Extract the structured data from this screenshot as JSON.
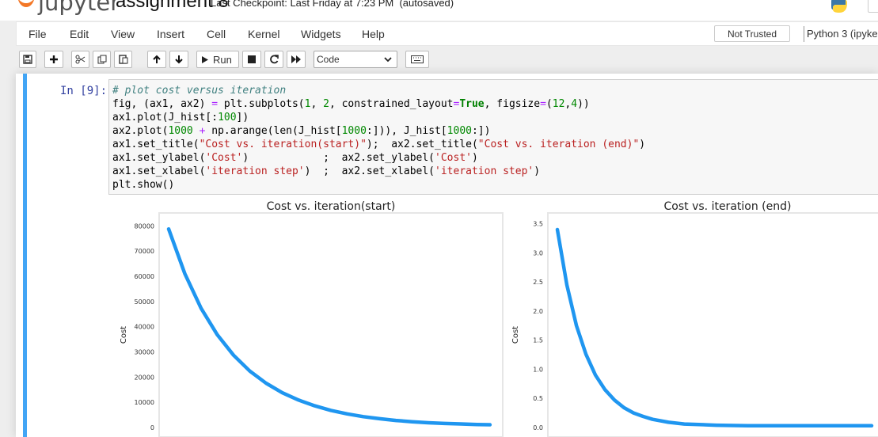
{
  "header": {
    "logo_text": "jupyter",
    "notebook_title": "assignment 8",
    "checkpoint": "Last Checkpoint: Last Friday at 7:23 PM",
    "autosave": "(autosaved)"
  },
  "menubar": {
    "items": [
      "File",
      "Edit",
      "View",
      "Insert",
      "Cell",
      "Kernel",
      "Widgets",
      "Help"
    ],
    "trust_status": "Not Trusted",
    "kernel": "Python 3 (ipyke"
  },
  "toolbar": {
    "run_label": "Run",
    "cell_type": "Code",
    "icons": [
      "save-icon",
      "plus-icon",
      "cut-icon",
      "copy-icon",
      "paste-icon",
      "arrow-up-icon",
      "arrow-down-icon",
      "play-icon",
      "stop-icon",
      "restart-icon",
      "fast-forward-icon",
      "keyboard-icon"
    ]
  },
  "cell": {
    "prompt": "In [9]:",
    "code_lines": [
      "# plot cost versus iteration",
      "fig, (ax1, ax2) = plt.subplots(1, 2, constrained_layout=True, figsize=(12,4))",
      "ax1.plot(J_hist[:100])",
      "ax2.plot(1000 + np.arange(len(J_hist[1000:])), J_hist[1000:])",
      "ax1.set_title(\"Cost vs. iteration(start)\");  ax2.set_title(\"Cost vs. iteration (end)\")",
      "ax1.set_ylabel('Cost')            ;  ax2.set_ylabel('Cost')",
      "ax1.set_xlabel('iteration step')  ;  ax2.set_xlabel('iteration step')",
      "plt.show()"
    ]
  },
  "colors": {
    "accent": "#42a5f5",
    "line": "#1f96f0",
    "prompt": "#303f9f"
  },
  "chart_data": [
    {
      "type": "line",
      "title": "Cost vs. iteration(start)",
      "ylabel": "Cost",
      "xlim": [
        0,
        100
      ],
      "ylim": [
        0,
        82000
      ],
      "yticks": [
        0,
        10000,
        20000,
        30000,
        40000,
        50000,
        60000,
        70000,
        80000
      ],
      "ytick_labels": [
        "0",
        "10000",
        "20000",
        "30000",
        "40000",
        "50000",
        "60000",
        "70000",
        "80000"
      ],
      "series": [
        {
          "x": [
            0,
            5,
            10,
            15,
            20,
            25,
            30,
            35,
            40,
            45,
            50,
            55,
            60,
            65,
            70,
            75,
            80,
            85,
            90,
            95,
            99
          ],
          "values": [
            78800,
            61000,
            47300,
            36800,
            28700,
            22400,
            17600,
            13800,
            10900,
            8600,
            6800,
            5400,
            4300,
            3500,
            2800,
            2300,
            1900,
            1600,
            1400,
            1200,
            1100
          ]
        }
      ]
    },
    {
      "type": "line",
      "title": "Cost vs. iteration (end)",
      "ylabel": "Cost",
      "xlim": [
        0,
        100
      ],
      "ylim": [
        0,
        3.55
      ],
      "yticks": [
        0.0,
        0.5,
        1.0,
        1.5,
        2.0,
        2.5,
        3.0,
        3.5
      ],
      "ytick_labels": [
        "0.0",
        "0.5",
        "1.0",
        "1.5",
        "2.0",
        "2.5",
        "3.0",
        "3.5"
      ],
      "series": [
        {
          "x": [
            0,
            3,
            6,
            9,
            12,
            15,
            18,
            21,
            24,
            27,
            30,
            35,
            40,
            50,
            60,
            70,
            80,
            90,
            99
          ],
          "values": [
            3.4,
            2.45,
            1.75,
            1.26,
            0.9,
            0.65,
            0.47,
            0.34,
            0.25,
            0.19,
            0.14,
            0.09,
            0.06,
            0.04,
            0.03,
            0.03,
            0.03,
            0.03,
            0.03
          ]
        }
      ]
    }
  ]
}
